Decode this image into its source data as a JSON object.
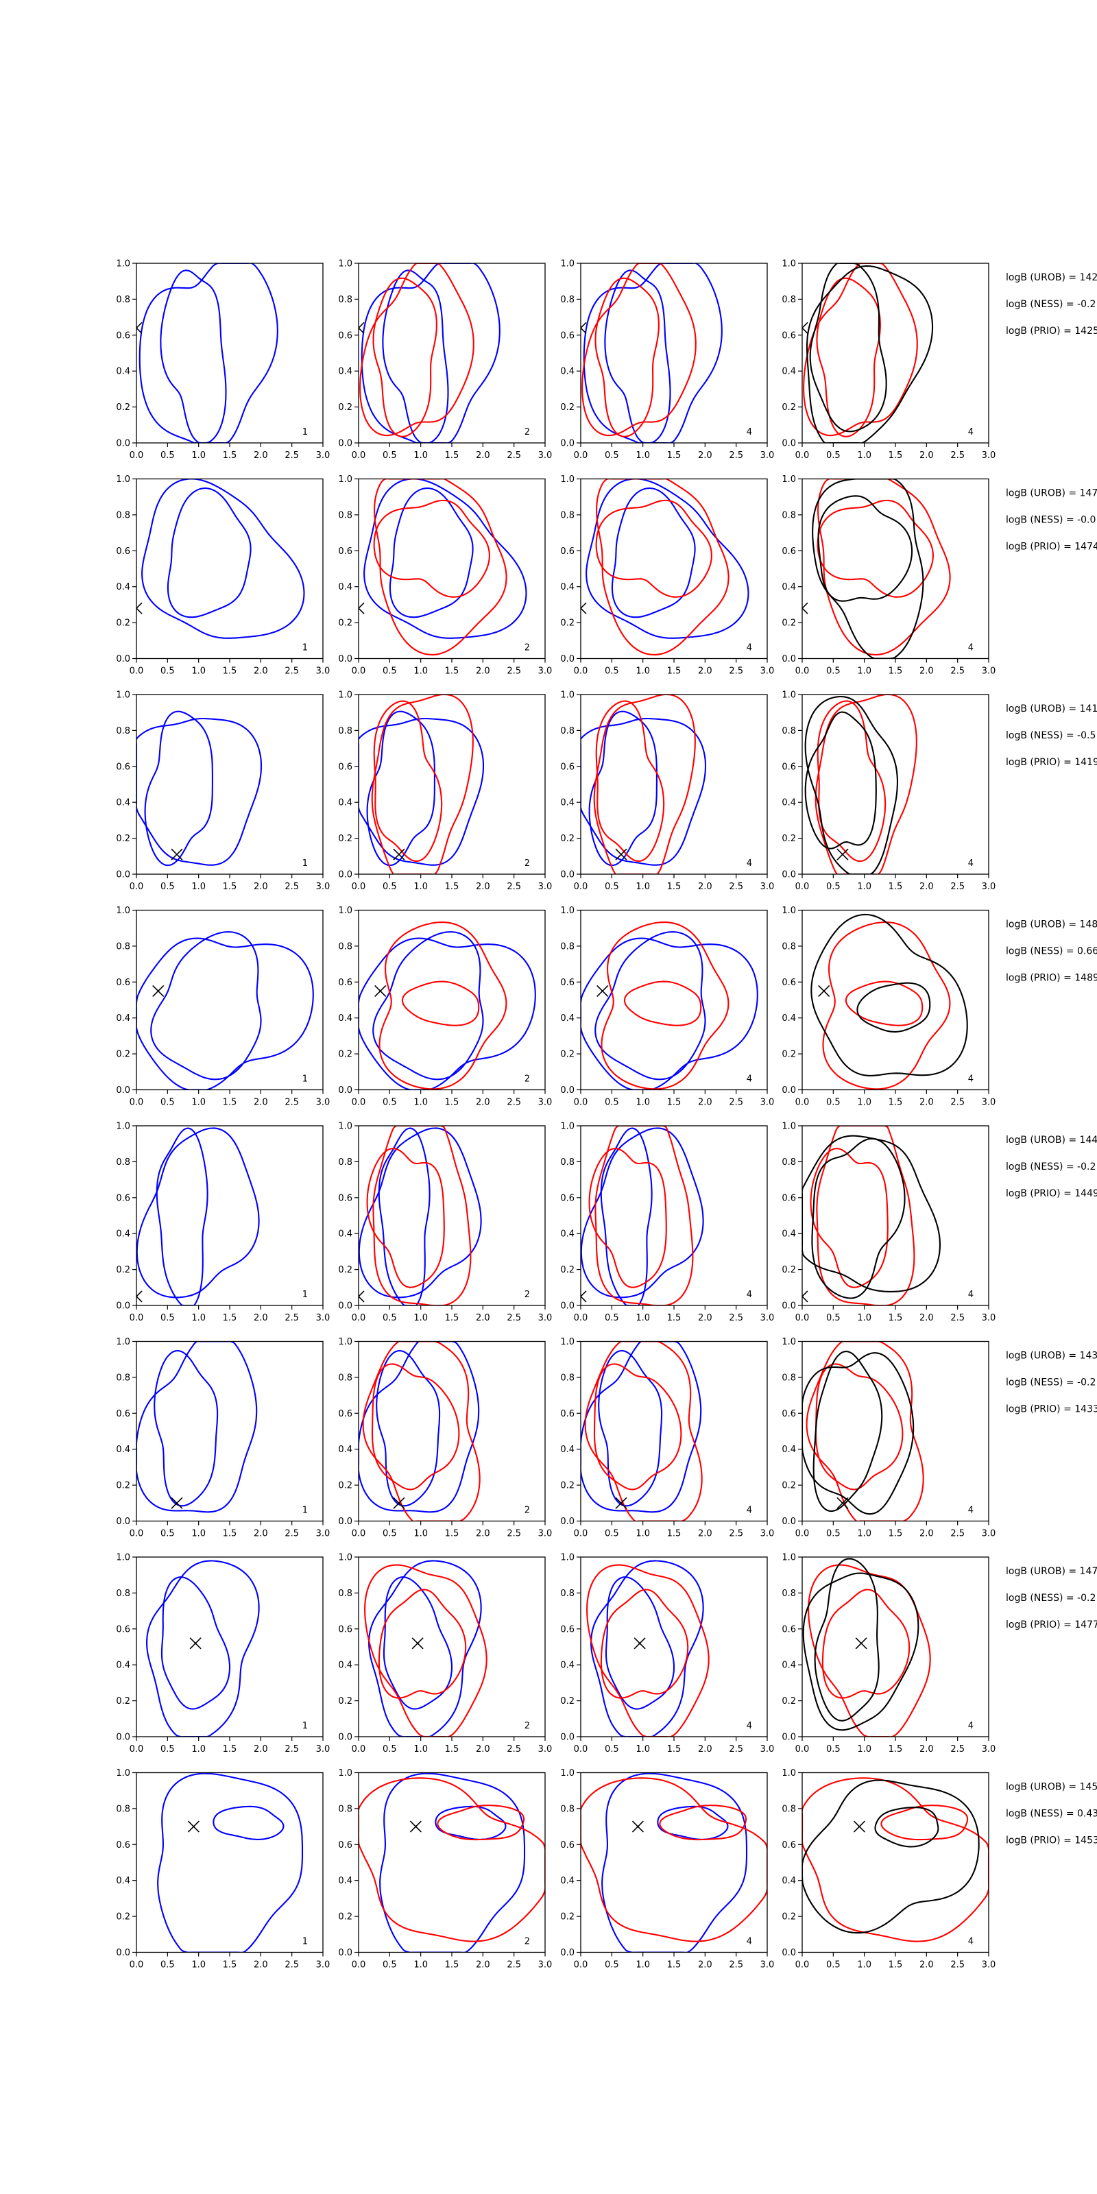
{
  "chart_data": {
    "type": "contour-grid",
    "title": "",
    "xlim": [
      0,
      3.0
    ],
    "ylim": [
      0,
      1.0
    ],
    "xticks": [
      "0.0",
      "0.5",
      "1.0",
      "1.5",
      "2.0",
      "2.5",
      "3.0"
    ],
    "yticks": [
      "0.0",
      "0.2",
      "0.4",
      "0.6",
      "0.8",
      "1.0"
    ],
    "grid": false,
    "legend": "none",
    "colors": {
      "first": "#0000ff",
      "second": "#ff0000",
      "combined": "#000000",
      "marker": "#000000"
    },
    "column_panel_labels": [
      "1",
      "2",
      "4",
      "4"
    ],
    "column_series": [
      [
        "blue"
      ],
      [
        "blue",
        "red"
      ],
      [
        "blue",
        "red"
      ],
      [
        "black",
        "red"
      ]
    ],
    "rows": [
      {
        "marker": [
          0.0,
          0.64
        ],
        "annotations": [
          "logB (UROB) = 142",
          "logB (NESS) = -0.2",
          "logB (PRIO) = 1425"
        ],
        "shapes": [
          {
            "series": "blue",
            "center": [
              0.95,
              0.5
            ],
            "hw": 0.48,
            "hh": 0.47,
            "k": 0.3,
            "seed": 3
          },
          {
            "series": "blue",
            "center": [
              1.15,
              0.5
            ],
            "hw": 0.98,
            "hh": 0.55,
            "k": 0.3,
            "seed": 7
          },
          {
            "series": "red",
            "center": [
              0.75,
              0.5
            ],
            "hw": 0.55,
            "hh": 0.38,
            "k": 0.28,
            "seed": 11
          },
          {
            "series": "red",
            "center": [
              0.95,
              0.5
            ],
            "hw": 0.82,
            "hh": 0.48,
            "k": 0.3,
            "seed": 13
          },
          {
            "series": "black",
            "center": [
              0.75,
              0.52
            ],
            "hw": 0.65,
            "hh": 0.42,
            "k": 0.25,
            "seed": 17
          },
          {
            "series": "black",
            "center": [
              1.0,
              0.5
            ],
            "hw": 0.95,
            "hh": 0.5,
            "k": 0.25,
            "seed": 19
          }
        ]
      },
      {
        "marker": [
          0.0,
          0.28
        ],
        "annotations": [
          "logB (UROB) = 147",
          "logB (NESS) = -0.0",
          "logB (PRIO) = 1474"
        ],
        "shapes": [
          {
            "series": "blue",
            "center": [
              1.15,
              0.57
            ],
            "hw": 0.75,
            "hh": 0.3,
            "k": 0.3,
            "seed": 5
          },
          {
            "series": "blue",
            "center": [
              1.3,
              0.52
            ],
            "hw": 1.15,
            "hh": 0.45,
            "k": 0.3,
            "seed": 9
          },
          {
            "series": "red",
            "center": [
              1.2,
              0.62
            ],
            "hw": 0.8,
            "hh": 0.28,
            "k": 0.32,
            "seed": 21
          },
          {
            "series": "red",
            "center": [
              1.25,
              0.55
            ],
            "hw": 1.15,
            "hh": 0.44,
            "k": 0.3,
            "seed": 23
          },
          {
            "series": "black",
            "center": [
              0.95,
              0.6
            ],
            "hw": 0.65,
            "hh": 0.33,
            "k": 0.28,
            "seed": 27
          },
          {
            "series": "black",
            "center": [
              1.1,
              0.55
            ],
            "hw": 0.95,
            "hh": 0.45,
            "k": 0.3,
            "seed": 29
          }
        ]
      },
      {
        "marker": [
          0.65,
          0.11
        ],
        "annotations": [
          "logB (UROB) = 141",
          "logB (NESS) = -0.5",
          "logB (PRIO) = 1419"
        ],
        "shapes": [
          {
            "series": "blue",
            "center": [
              0.7,
              0.48
            ],
            "hw": 0.55,
            "hh": 0.38,
            "k": 0.3,
            "seed": 31
          },
          {
            "series": "blue",
            "center": [
              0.95,
              0.48
            ],
            "hw": 0.9,
            "hh": 0.48,
            "k": 0.3,
            "seed": 33
          },
          {
            "series": "red",
            "center": [
              0.75,
              0.5
            ],
            "hw": 0.55,
            "hh": 0.4,
            "k": 0.3,
            "seed": 35
          },
          {
            "series": "red",
            "center": [
              1.0,
              0.5
            ],
            "hw": 0.85,
            "hh": 0.48,
            "k": 0.3,
            "seed": 37
          },
          {
            "series": "black",
            "center": [
              0.65,
              0.5
            ],
            "hw": 0.5,
            "hh": 0.42,
            "k": 0.25,
            "seed": 39
          },
          {
            "series": "black",
            "center": [
              0.8,
              0.5
            ],
            "hw": 0.7,
            "hh": 0.48,
            "k": 0.25,
            "seed": 41
          }
        ]
      },
      {
        "marker": [
          0.35,
          0.55
        ],
        "annotations": [
          "logB (UROB) = 148",
          "logB (NESS) = 0.66",
          "logB (PRIO) = 1489"
        ],
        "shapes": [
          {
            "series": "blue",
            "center": [
              1.2,
              0.45
            ],
            "hw": 0.95,
            "hh": 0.35,
            "k": 0.3,
            "seed": 43
          },
          {
            "series": "blue",
            "center": [
              1.35,
              0.45
            ],
            "hw": 1.25,
            "hh": 0.45,
            "k": 0.3,
            "seed": 45
          },
          {
            "series": "red",
            "center": [
              1.35,
              0.48
            ],
            "hw": 0.6,
            "hh": 0.12,
            "k": 0.15,
            "seed": 47
          },
          {
            "series": "red",
            "center": [
              1.3,
              0.47
            ],
            "hw": 1.1,
            "hh": 0.4,
            "k": 0.3,
            "seed": 49
          },
          {
            "series": "black",
            "center": [
              1.5,
              0.46
            ],
            "hw": 0.55,
            "hh": 0.14,
            "k": 0.15,
            "seed": 51
          },
          {
            "series": "black",
            "center": [
              1.35,
              0.48
            ],
            "hw": 1.15,
            "hh": 0.45,
            "k": 0.28,
            "seed": 53
          }
        ]
      },
      {
        "marker": [
          0.0,
          0.05
        ],
        "annotations": [
          "logB (UROB) = 144",
          "logB (NESS) = -0.2",
          "logB (PRIO) = 1449"
        ],
        "shapes": [
          {
            "series": "blue",
            "center": [
              0.75,
              0.5
            ],
            "hw": 0.45,
            "hh": 0.42,
            "k": 0.3,
            "seed": 55
          },
          {
            "series": "blue",
            "center": [
              1.0,
              0.5
            ],
            "hw": 0.85,
            "hh": 0.48,
            "k": 0.3,
            "seed": 57
          },
          {
            "series": "red",
            "center": [
              0.8,
              0.5
            ],
            "hw": 0.55,
            "hh": 0.4,
            "k": 0.3,
            "seed": 59
          },
          {
            "series": "red",
            "center": [
              1.0,
              0.5
            ],
            "hw": 0.9,
            "hh": 0.48,
            "k": 0.3,
            "seed": 61
          },
          {
            "series": "black",
            "center": [
              0.85,
              0.5
            ],
            "hw": 0.7,
            "hh": 0.43,
            "k": 0.28,
            "seed": 63
          },
          {
            "series": "black",
            "center": [
              1.05,
              0.5
            ],
            "hw": 1.0,
            "hh": 0.48,
            "k": 0.28,
            "seed": 65
          }
        ]
      },
      {
        "marker": [
          0.65,
          0.1
        ],
        "annotations": [
          "logB (UROB) = 143",
          "logB (NESS) = -0.2",
          "logB (PRIO) = 1433"
        ],
        "shapes": [
          {
            "series": "blue",
            "center": [
              0.8,
              0.52
            ],
            "hw": 0.55,
            "hh": 0.37,
            "k": 0.28,
            "seed": 67
          },
          {
            "series": "blue",
            "center": [
              1.0,
              0.5
            ],
            "hw": 0.95,
            "hh": 0.47,
            "k": 0.28,
            "seed": 69
          },
          {
            "series": "red",
            "center": [
              0.85,
              0.52
            ],
            "hw": 0.6,
            "hh": 0.38,
            "k": 0.3,
            "seed": 71
          },
          {
            "series": "red",
            "center": [
              1.05,
              0.5
            ],
            "hw": 0.95,
            "hh": 0.48,
            "k": 0.3,
            "seed": 73
          },
          {
            "series": "black",
            "center": [
              0.7,
              0.5
            ],
            "hw": 0.55,
            "hh": 0.4,
            "k": 0.25,
            "seed": 75
          },
          {
            "series": "black",
            "center": [
              0.9,
              0.5
            ],
            "hw": 0.8,
            "hh": 0.48,
            "k": 0.25,
            "seed": 77
          }
        ]
      },
      {
        "marker": [
          0.95,
          0.52
        ],
        "annotations": [
          "logB (UROB) = 147",
          "logB (NESS) = -0.2",
          "logB (PRIO) = 1477"
        ],
        "shapes": [
          {
            "series": "blue",
            "center": [
              0.9,
              0.5
            ],
            "hw": 0.55,
            "hh": 0.33,
            "k": 0.28,
            "seed": 79
          },
          {
            "series": "blue",
            "center": [
              1.05,
              0.5
            ],
            "hw": 0.9,
            "hh": 0.45,
            "k": 0.28,
            "seed": 81
          },
          {
            "series": "red",
            "center": [
              1.0,
              0.5
            ],
            "hw": 0.6,
            "hh": 0.33,
            "k": 0.28,
            "seed": 83
          },
          {
            "series": "red",
            "center": [
              1.1,
              0.5
            ],
            "hw": 0.95,
            "hh": 0.45,
            "k": 0.28,
            "seed": 85
          },
          {
            "series": "black",
            "center": [
              0.75,
              0.52
            ],
            "hw": 0.55,
            "hh": 0.4,
            "k": 0.25,
            "seed": 87
          },
          {
            "series": "black",
            "center": [
              0.9,
              0.5
            ],
            "hw": 0.8,
            "hh": 0.48,
            "k": 0.25,
            "seed": 89
          }
        ]
      },
      {
        "marker": [
          0.92,
          0.7
        ],
        "annotations": [
          "logB (UROB) = 145",
          "logB (NESS) = 0.43",
          "logB (PRIO) = 1453"
        ],
        "shapes": [
          {
            "series": "blue",
            "center": [
              1.8,
              0.72
            ],
            "hw": 0.55,
            "hh": 0.09,
            "k": 0.15,
            "seed": 91
          },
          {
            "series": "blue",
            "center": [
              1.45,
              0.5
            ],
            "hw": 1.35,
            "hh": 0.45,
            "k": 0.3,
            "seed": 93
          },
          {
            "series": "red",
            "center": [
              2.0,
              0.72
            ],
            "hw": 0.65,
            "hh": 0.1,
            "k": 0.15,
            "seed": 95
          },
          {
            "series": "red",
            "center": [
              1.45,
              0.5
            ],
            "hw": 1.4,
            "hh": 0.46,
            "k": 0.3,
            "seed": 97
          },
          {
            "series": "black",
            "center": [
              1.7,
              0.7
            ],
            "hw": 0.55,
            "hh": 0.1,
            "k": 0.15,
            "seed": 99
          },
          {
            "series": "black",
            "center": [
              1.4,
              0.55
            ],
            "hw": 1.3,
            "hh": 0.42,
            "k": 0.28,
            "seed": 101
          }
        ]
      }
    ]
  }
}
